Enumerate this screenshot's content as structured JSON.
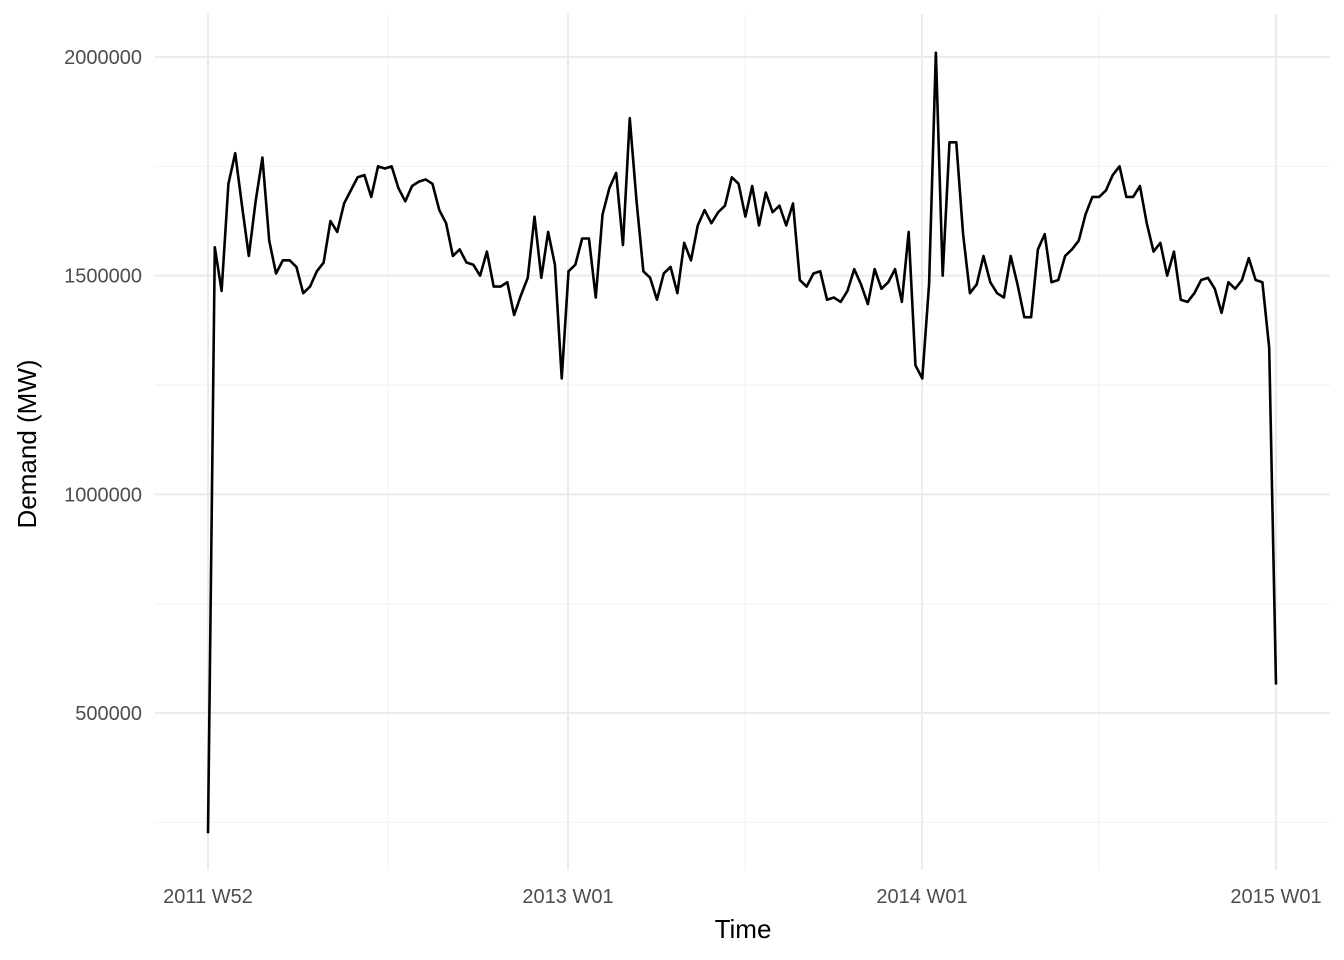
{
  "chart_data": {
    "type": "line",
    "title": "",
    "xlabel": "Time",
    "ylabel": "Demand (MW)",
    "x_tick_labels": [
      "2011 W52",
      "2013 W01",
      "2014 W01",
      "2015 W01"
    ],
    "y_tick_labels": [
      "500000",
      "1000000",
      "1500000",
      "2000000"
    ],
    "y_ticks": [
      500000,
      1000000,
      1500000,
      2000000
    ],
    "ylim": [
      175000,
      2100000
    ],
    "grid": true,
    "legend": "none",
    "line_color": "#000000",
    "series": [
      {
        "values": [
          225000,
          1565000,
          1465000,
          1710000,
          1780000,
          1660000,
          1545000,
          1670000,
          1770000,
          1580000,
          1505000,
          1535000,
          1535000,
          1520000,
          1460000,
          1475000,
          1510000,
          1530000,
          1625000,
          1600000,
          1665000,
          1695000,
          1725000,
          1730000,
          1680000,
          1750000,
          1745000,
          1750000,
          1700000,
          1670000,
          1705000,
          1715000,
          1720000,
          1710000,
          1650000,
          1620000,
          1545000,
          1560000,
          1530000,
          1525000,
          1500000,
          1555000,
          1475000,
          1475000,
          1485000,
          1410000,
          1455000,
          1495000,
          1635000,
          1495000,
          1600000,
          1525000,
          1265000,
          1510000,
          1525000,
          1585000,
          1585000,
          1450000,
          1640000,
          1700000,
          1735000,
          1570000,
          1860000,
          1670000,
          1510000,
          1495000,
          1445000,
          1505000,
          1520000,
          1460000,
          1575000,
          1535000,
          1615000,
          1650000,
          1620000,
          1645000,
          1660000,
          1725000,
          1710000,
          1635000,
          1705000,
          1615000,
          1690000,
          1645000,
          1660000,
          1615000,
          1665000,
          1490000,
          1475000,
          1505000,
          1510000,
          1445000,
          1450000,
          1440000,
          1465000,
          1515000,
          1480000,
          1435000,
          1515000,
          1470000,
          1485000,
          1515000,
          1440000,
          1600000,
          1295000,
          1265000,
          1480000,
          2010000,
          1500000,
          1805000,
          1805000,
          1595000,
          1460000,
          1480000,
          1545000,
          1485000,
          1460000,
          1450000,
          1545000,
          1480000,
          1405000,
          1405000,
          1560000,
          1595000,
          1485000,
          1490000,
          1545000,
          1560000,
          1580000,
          1640000,
          1680000,
          1680000,
          1695000,
          1730000,
          1750000,
          1680000,
          1680000,
          1705000,
          1620000,
          1555000,
          1575000,
          1500000,
          1555000,
          1445000,
          1440000,
          1460000,
          1490000,
          1495000,
          1470000,
          1415000,
          1485000,
          1470000,
          1490000,
          1540000,
          1490000,
          1485000,
          1335000,
          565000
        ]
      }
    ]
  }
}
